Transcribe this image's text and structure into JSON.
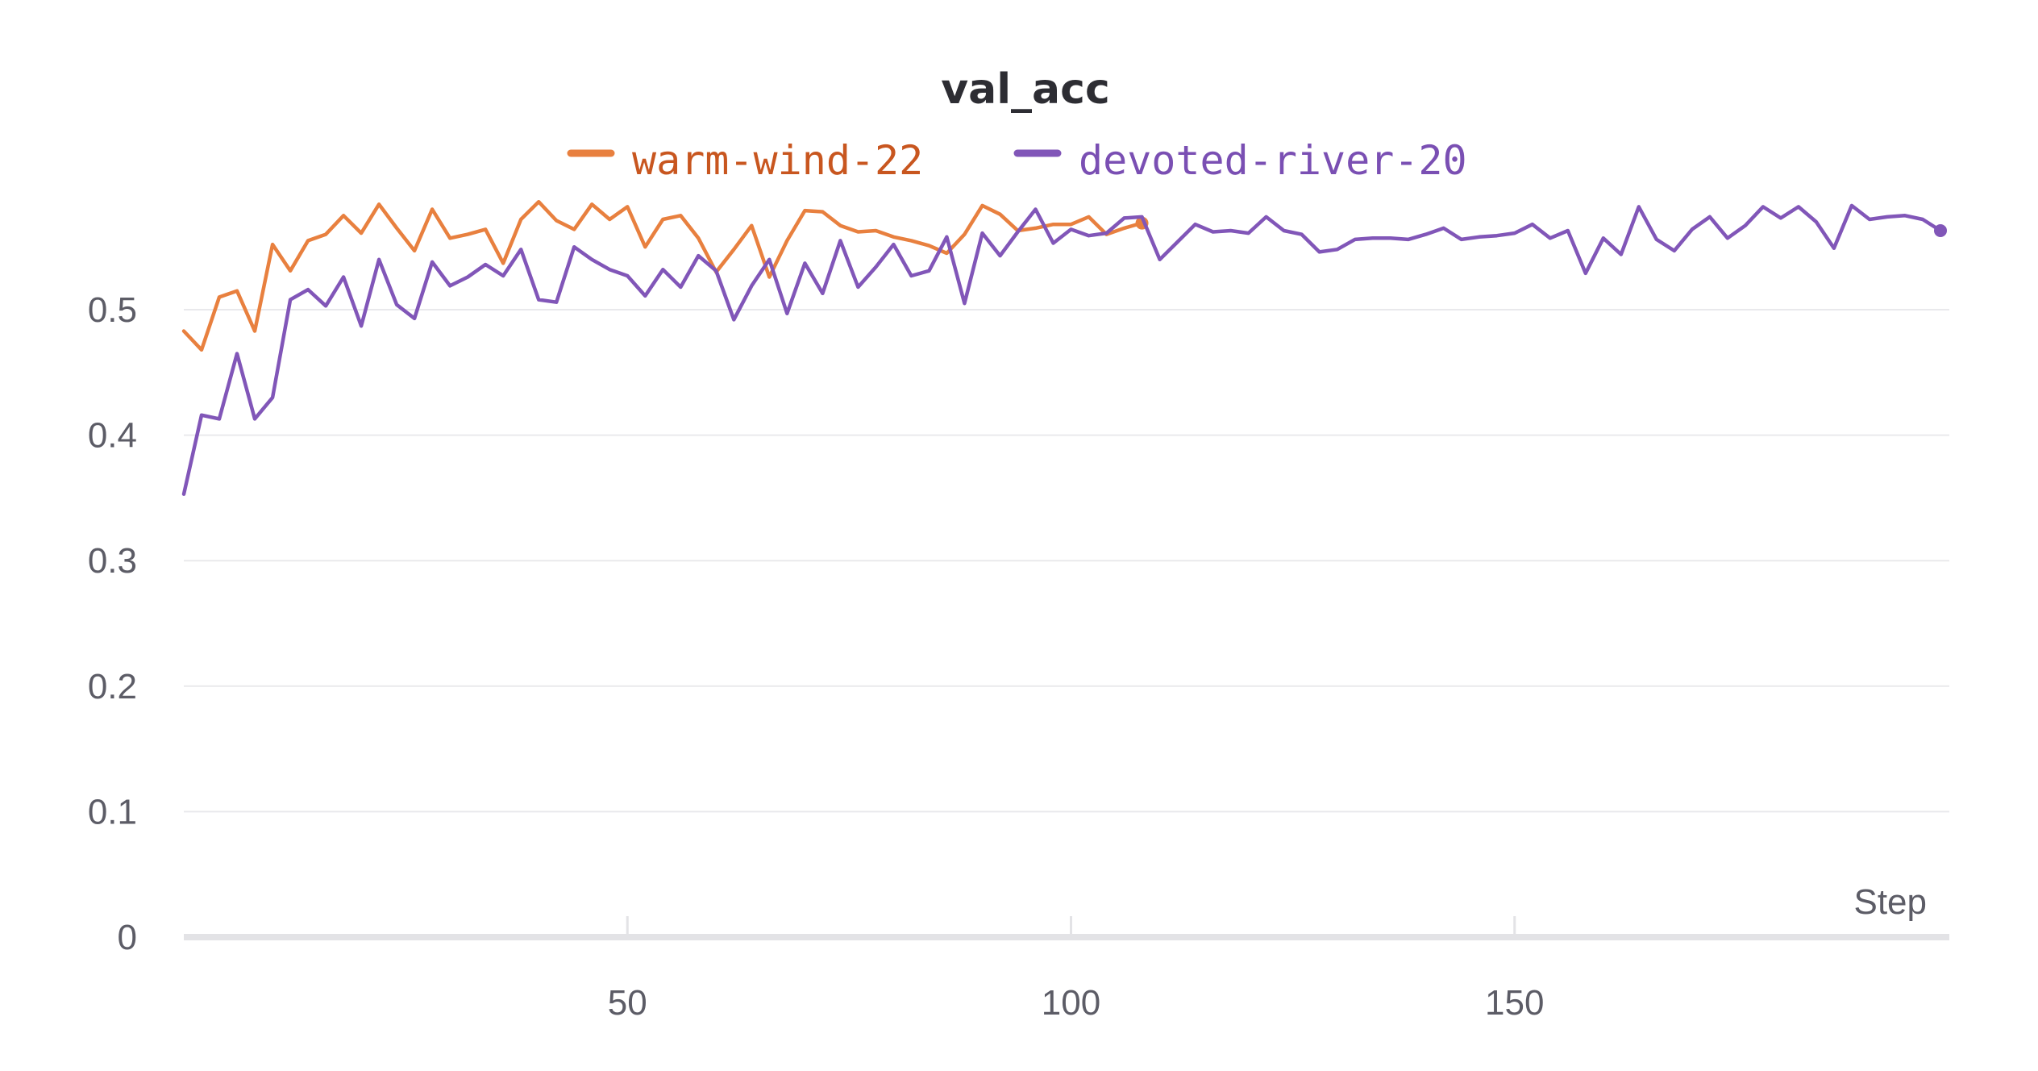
{
  "chart_data": {
    "type": "line",
    "title": "val_acc",
    "xlabel": "Step",
    "ylabel": "",
    "xlim": [
      0,
      199
    ],
    "ylim": [
      0,
      0.6
    ],
    "x_ticks": [
      50,
      100,
      150
    ],
    "y_ticks": [
      0,
      0.1,
      0.2,
      0.3,
      0.4,
      0.5
    ],
    "y_tick_labels": [
      "0",
      "0.1",
      "0.2",
      "0.3",
      "0.4",
      "0.5"
    ],
    "grid": true,
    "legend_placement": "top-center",
    "series": [
      {
        "name": "warm-wind-22",
        "color": "#e8803f",
        "label_color": "#c8561f",
        "x": [
          0,
          2,
          4,
          6,
          8,
          10,
          12,
          14,
          16,
          18,
          20,
          22,
          24,
          26,
          28,
          30,
          32,
          34,
          36,
          38,
          40,
          42,
          44,
          46,
          48,
          50,
          52,
          54,
          56,
          58,
          60,
          62,
          64,
          66,
          68,
          70,
          72,
          74,
          76,
          78,
          80,
          82,
          84,
          86,
          88,
          90,
          92,
          94,
          96,
          98,
          100,
          102,
          104,
          106,
          108
        ],
        "values": [
          0.483,
          0.468,
          0.51,
          0.515,
          0.483,
          0.552,
          0.531,
          0.555,
          0.56,
          0.575,
          0.561,
          0.584,
          0.565,
          0.547,
          0.58,
          0.557,
          0.56,
          0.564,
          0.537,
          0.572,
          0.586,
          0.571,
          0.564,
          0.584,
          0.572,
          0.582,
          0.55,
          0.572,
          0.575,
          0.557,
          0.53,
          0.548,
          0.567,
          0.526,
          0.555,
          0.579,
          0.578,
          0.567,
          0.562,
          0.563,
          0.558,
          0.555,
          0.551,
          0.545,
          0.56,
          0.583,
          0.576,
          0.563,
          0.565,
          0.568,
          0.568,
          0.574,
          0.56,
          0.565,
          0.569
        ]
      },
      {
        "name": "devoted-river-20",
        "color": "#8156b8",
        "label_color": "#7a4fb3",
        "x": [
          0,
          2,
          4,
          6,
          8,
          10,
          12,
          14,
          16,
          18,
          20,
          22,
          24,
          26,
          28,
          30,
          32,
          34,
          36,
          38,
          40,
          42,
          44,
          46,
          48,
          50,
          52,
          54,
          56,
          58,
          60,
          62,
          64,
          66,
          68,
          70,
          72,
          74,
          76,
          78,
          80,
          82,
          84,
          86,
          88,
          90,
          92,
          94,
          96,
          98,
          100,
          102,
          104,
          106,
          108,
          110,
          112,
          114,
          116,
          118,
          120,
          122,
          124,
          126,
          128,
          130,
          132,
          134,
          136,
          138,
          140,
          142,
          144,
          146,
          148,
          150,
          152,
          154,
          156,
          158,
          160,
          162,
          164,
          166,
          168,
          170,
          172,
          174,
          176,
          178,
          180,
          182,
          184,
          186,
          188,
          190,
          192,
          194,
          196,
          198
        ],
        "values": [
          0.353,
          0.416,
          0.413,
          0.465,
          0.413,
          0.43,
          0.508,
          0.516,
          0.503,
          0.526,
          0.487,
          0.54,
          0.504,
          0.493,
          0.538,
          0.519,
          0.526,
          0.536,
          0.527,
          0.548,
          0.508,
          0.506,
          0.55,
          0.54,
          0.532,
          0.527,
          0.511,
          0.532,
          0.518,
          0.543,
          0.531,
          0.492,
          0.519,
          0.54,
          0.497,
          0.537,
          0.513,
          0.555,
          0.518,
          0.534,
          0.552,
          0.527,
          0.531,
          0.558,
          0.505,
          0.561,
          0.543,
          0.562,
          0.58,
          0.553,
          0.564,
          0.559,
          0.561,
          0.573,
          0.574,
          0.54,
          0.554,
          0.568,
          0.562,
          0.563,
          0.561,
          0.574,
          0.563,
          0.56,
          0.546,
          0.548,
          0.556,
          0.557,
          0.557,
          0.556,
          0.56,
          0.565,
          0.556,
          0.558,
          0.559,
          0.561,
          0.568,
          0.557,
          0.563,
          0.529,
          0.557,
          0.544,
          0.582,
          0.556,
          0.547,
          0.564,
          0.574,
          0.557,
          0.567,
          0.582,
          0.573,
          0.582,
          0.57,
          0.549,
          0.583,
          0.572,
          0.574,
          0.575,
          0.572,
          0.563
        ]
      }
    ]
  }
}
